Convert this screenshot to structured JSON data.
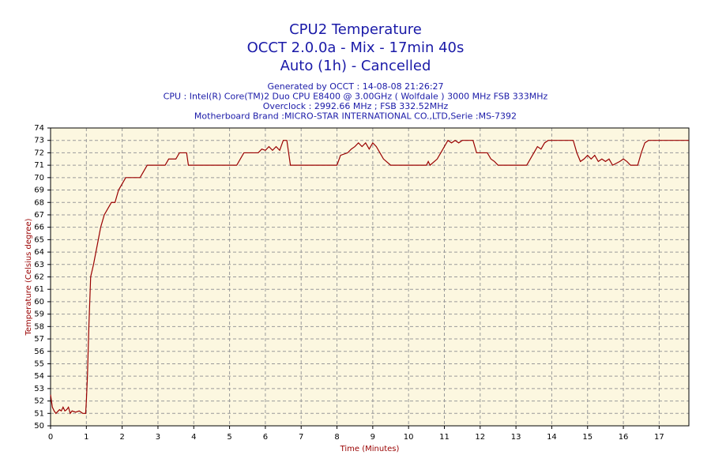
{
  "chart_data": {
    "type": "line",
    "title": [
      "CPU2 Temperature",
      "OCCT 2.0.0a - Mix - 17min 40s",
      "Auto (1h) - Cancelled"
    ],
    "subtitle": [
      "Generated by OCCT : 14-08-08 21:26:27",
      "CPU : Intel(R) Core(TM)2 Duo CPU E8400 @ 3.00GHz ( Wolfdale ) 3000 MHz FSB 333MHz",
      "Overclock : 2992.66 MHz ; FSB 332.52MHz",
      "Motherboard Brand :MICRO-STAR INTERNATIONAL CO.,LTD,Serie :MS-7392"
    ],
    "xlabel": "Time (Minutes)",
    "ylabel": "Temperature (Celsius degree)",
    "color": "#990000",
    "grid": true,
    "xlim": [
      0,
      17.83
    ],
    "ylim": [
      50,
      74
    ],
    "xticks": [
      0,
      1,
      2,
      3,
      4,
      5,
      6,
      7,
      8,
      9,
      10,
      11,
      12,
      13,
      14,
      15,
      16,
      17
    ],
    "yticks": [
      50,
      51,
      52,
      53,
      54,
      55,
      56,
      57,
      58,
      59,
      60,
      61,
      62,
      63,
      64,
      65,
      66,
      67,
      68,
      69,
      70,
      71,
      72,
      73,
      74
    ],
    "x": [
      0,
      0.05,
      0.1,
      0.15,
      0.25,
      0.3,
      0.35,
      0.4,
      0.45,
      0.5,
      0.55,
      0.6,
      0.7,
      0.8,
      0.9,
      0.98,
      1.0,
      1.03,
      1.07,
      1.12,
      1.2,
      1.3,
      1.4,
      1.5,
      1.6,
      1.7,
      1.8,
      1.85,
      1.9,
      2.0,
      2.1,
      2.5,
      2.6,
      2.7,
      3.2,
      3.3,
      3.5,
      3.6,
      3.8,
      3.85,
      5.2,
      5.3,
      5.4,
      5.8,
      5.9,
      6.0,
      6.1,
      6.2,
      6.3,
      6.4,
      6.5,
      6.6,
      6.65,
      6.7,
      8.0,
      8.1,
      8.3,
      8.4,
      8.5,
      8.6,
      8.7,
      8.8,
      8.9,
      9.0,
      9.1,
      9.2,
      9.3,
      9.5,
      10.5,
      10.55,
      10.6,
      10.8,
      10.9,
      11.0,
      11.1,
      11.2,
      11.3,
      11.4,
      11.5,
      11.8,
      11.9,
      12.2,
      12.3,
      12.4,
      12.5,
      13.3,
      13.5,
      13.6,
      13.7,
      13.8,
      13.9,
      14.6,
      14.7,
      14.8,
      14.9,
      15.0,
      15.1,
      15.2,
      15.3,
      15.4,
      15.5,
      15.6,
      15.7,
      15.9,
      16.0,
      16.1,
      16.2,
      16.4,
      16.5,
      16.6,
      16.7,
      17.83
    ],
    "values": [
      52.5,
      51.5,
      51.2,
      51,
      51.3,
      51.2,
      51.5,
      51.2,
      51.3,
      51.5,
      51,
      51.2,
      51.1,
      51.2,
      51,
      51,
      52,
      54,
      58,
      62,
      63,
      64.5,
      66,
      67,
      67.5,
      68,
      68,
      68.5,
      69,
      69.5,
      70,
      70,
      70.5,
      71,
      71,
      71.5,
      71.5,
      72,
      72,
      71,
      71,
      71.5,
      72,
      72,
      72.3,
      72.2,
      72.5,
      72.2,
      72.5,
      72.2,
      73,
      73,
      72,
      71,
      71,
      71.8,
      72,
      72.3,
      72.5,
      72.8,
      72.5,
      72.8,
      72.3,
      72.8,
      72.5,
      72,
      71.5,
      71,
      71,
      71.3,
      71,
      71.5,
      72,
      72.5,
      73,
      72.8,
      73,
      72.8,
      73,
      73,
      72,
      72,
      71.5,
      71.3,
      71,
      71,
      72,
      72.5,
      72.3,
      72.8,
      73,
      73,
      72,
      71.3,
      71.5,
      71.8,
      71.5,
      71.8,
      71.3,
      71.5,
      71.3,
      71.5,
      71,
      71.3,
      71.5,
      71.3,
      71,
      71,
      72,
      72.8,
      73,
      73
    ]
  }
}
